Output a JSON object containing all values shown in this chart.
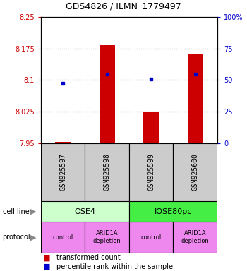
{
  "title": "GDS4826 / ILMN_1779497",
  "samples": [
    "GSM925597",
    "GSM925598",
    "GSM925599",
    "GSM925600"
  ],
  "bar_values": [
    7.953,
    8.183,
    8.026,
    8.163
  ],
  "bar_base": 7.95,
  "dot_values": [
    8.093,
    8.115,
    8.103,
    8.115
  ],
  "ylim": [
    7.95,
    8.25
  ],
  "y_ticks_left": [
    7.95,
    8.025,
    8.1,
    8.175,
    8.25
  ],
  "y_ticks_right": [
    0,
    25,
    50,
    75,
    100
  ],
  "cell_lines": [
    [
      "OSE4",
      2
    ],
    [
      "IOSE80pc",
      2
    ]
  ],
  "cell_line_colors": [
    "#ccffcc",
    "#44ee44"
  ],
  "protocols": [
    "control",
    "ARID1A\ndepletion",
    "control",
    "ARID1A\ndepletion"
  ],
  "protocol_color": "#ee88ee",
  "sample_box_color": "#cccccc",
  "bar_color": "#cc0000",
  "dot_color": "#0000cc",
  "left_label_color": "#cc0000",
  "right_label_color": "#0000cc",
  "grid_ticks": [
    8.025,
    8.1,
    8.175
  ]
}
